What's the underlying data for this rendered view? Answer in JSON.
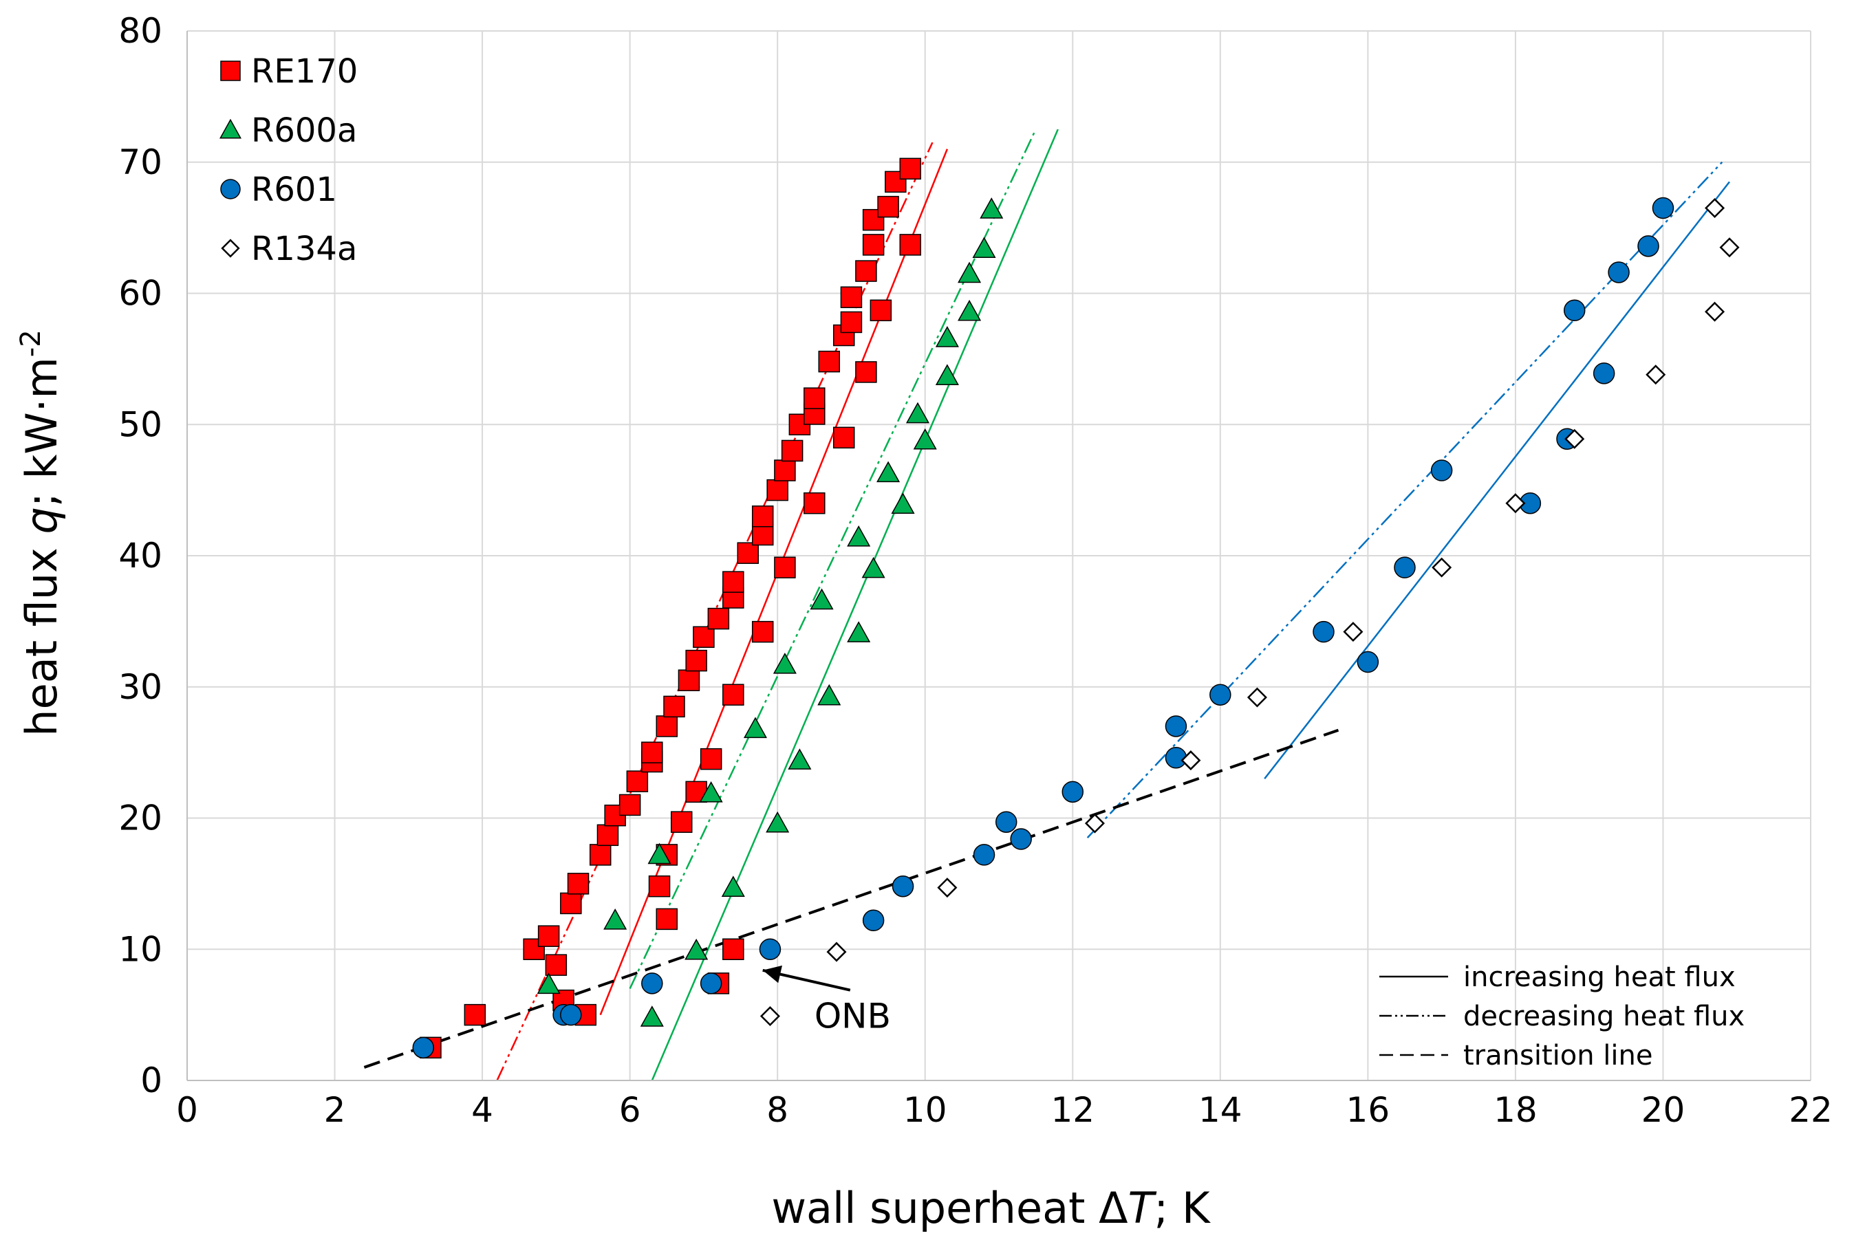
{
  "chart_data": {
    "type": "scatter",
    "title": "",
    "xlabel": "wall superheat ΔT; K",
    "xlabel_parts": [
      "wall superheat Δ",
      "T",
      "; K"
    ],
    "ylabel": "heat flux q; kW·m-2",
    "ylabel_parts": [
      "heat flux ",
      "q",
      "; kW·m",
      "-2"
    ],
    "xlim": [
      0,
      22
    ],
    "ylim": [
      0,
      80
    ],
    "xticks": [
      0,
      2,
      4,
      6,
      8,
      10,
      12,
      14,
      16,
      18,
      20,
      22
    ],
    "yticks": [
      0,
      10,
      20,
      30,
      40,
      50,
      60,
      70,
      80
    ],
    "grid": true,
    "legend_position": "top-left",
    "colors": {
      "RE170": "#ff0000",
      "R600a": "#00b050",
      "R601": "#0070c0",
      "R134a": "#ffffff",
      "transition": "#000000"
    },
    "series": [
      {
        "name": "RE170",
        "marker": "square",
        "color": "#ff0000",
        "points": [
          [
            3.3,
            2.5
          ],
          [
            3.9,
            5
          ],
          [
            4.7,
            10
          ],
          [
            4.9,
            11
          ],
          [
            5.0,
            8.8
          ],
          [
            5.1,
            6.1
          ],
          [
            5.2,
            13.5
          ],
          [
            5.3,
            15
          ],
          [
            5.4,
            5
          ],
          [
            5.6,
            17.2
          ],
          [
            5.7,
            18.7
          ],
          [
            5.8,
            20.2
          ],
          [
            6.0,
            21
          ],
          [
            6.1,
            22.8
          ],
          [
            6.3,
            24.3
          ],
          [
            6.3,
            25
          ],
          [
            6.5,
            27
          ],
          [
            6.6,
            28.5
          ],
          [
            6.8,
            30.5
          ],
          [
            6.9,
            32
          ],
          [
            7.0,
            33.8
          ],
          [
            7.2,
            35.2
          ],
          [
            7.4,
            36.8
          ],
          [
            7.4,
            38
          ],
          [
            7.6,
            40.2
          ],
          [
            7.8,
            41.6
          ],
          [
            7.8,
            43
          ],
          [
            8.0,
            45
          ],
          [
            8.1,
            46.5
          ],
          [
            8.2,
            48
          ],
          [
            8.3,
            50
          ],
          [
            8.5,
            50.8
          ],
          [
            8.5,
            52
          ],
          [
            8.7,
            54.8
          ],
          [
            8.9,
            56.8
          ],
          [
            9.0,
            57.8
          ],
          [
            9.0,
            59.7
          ],
          [
            9.2,
            61.7
          ],
          [
            9.3,
            63.7
          ],
          [
            9.3,
            65.6
          ],
          [
            9.5,
            66.6
          ],
          [
            9.6,
            68.5
          ],
          [
            9.8,
            69.5
          ],
          [
            9.8,
            63.7
          ],
          [
            9.4,
            58.7
          ],
          [
            9.2,
            54
          ],
          [
            8.9,
            49
          ],
          [
            8.5,
            44
          ],
          [
            8.1,
            39.1
          ],
          [
            7.8,
            34.2
          ],
          [
            7.4,
            29.4
          ],
          [
            7.1,
            24.5
          ],
          [
            6.9,
            22
          ],
          [
            6.7,
            19.7
          ],
          [
            6.5,
            17.2
          ],
          [
            6.4,
            14.8
          ],
          [
            6.5,
            12.3
          ],
          [
            7.4,
            10
          ],
          [
            7.2,
            7.4
          ]
        ]
      },
      {
        "name": "R600a",
        "marker": "triangle",
        "color": "#00b050",
        "points": [
          [
            4.9,
            7.3
          ],
          [
            5.8,
            12.2
          ],
          [
            6.3,
            4.8
          ],
          [
            6.4,
            17.2
          ],
          [
            6.9,
            9.9
          ],
          [
            7.1,
            21.9
          ],
          [
            7.4,
            14.7
          ],
          [
            7.7,
            26.8
          ],
          [
            8.0,
            19.6
          ],
          [
            8.1,
            31.7
          ],
          [
            8.3,
            24.4
          ],
          [
            8.6,
            36.6
          ],
          [
            8.7,
            29.3
          ],
          [
            9.1,
            34.1
          ],
          [
            9.1,
            41.4
          ],
          [
            9.3,
            39
          ],
          [
            9.5,
            46.3
          ],
          [
            9.7,
            43.9
          ],
          [
            9.9,
            50.8
          ],
          [
            10.0,
            48.8
          ],
          [
            10.3,
            53.7
          ],
          [
            10.3,
            56.6
          ],
          [
            10.6,
            58.6
          ],
          [
            10.6,
            61.5
          ],
          [
            10.8,
            63.4
          ],
          [
            10.9,
            66.4
          ]
        ]
      },
      {
        "name": "R601",
        "marker": "circle",
        "color": "#0070c0",
        "points": [
          [
            3.2,
            2.5
          ],
          [
            5.1,
            5
          ],
          [
            5.2,
            5
          ],
          [
            6.3,
            7.4
          ],
          [
            7.1,
            7.4
          ],
          [
            7.9,
            10
          ],
          [
            9.3,
            12.2
          ],
          [
            9.7,
            14.8
          ],
          [
            10.8,
            17.2
          ],
          [
            11.1,
            19.7
          ],
          [
            11.3,
            18.4
          ],
          [
            12.0,
            22
          ],
          [
            13.4,
            24.6
          ],
          [
            13.4,
            27
          ],
          [
            14.0,
            29.4
          ],
          [
            15.4,
            34.2
          ],
          [
            16.0,
            31.9
          ],
          [
            16.5,
            39.1
          ],
          [
            17.0,
            46.5
          ],
          [
            18.2,
            44
          ],
          [
            18.7,
            48.9
          ],
          [
            18.8,
            58.7
          ],
          [
            19.2,
            53.9
          ],
          [
            19.4,
            61.6
          ],
          [
            19.8,
            63.6
          ],
          [
            20.0,
            66.5
          ]
        ]
      },
      {
        "name": "R134a",
        "marker": "diamond",
        "color": "#ffffff",
        "points": [
          [
            7.9,
            4.9
          ],
          [
            8.8,
            9.8
          ],
          [
            10.3,
            14.7
          ],
          [
            12.3,
            19.6
          ],
          [
            13.6,
            24.4
          ],
          [
            14.5,
            29.2
          ],
          [
            15.8,
            34.2
          ],
          [
            17.0,
            39.1
          ],
          [
            18.0,
            44
          ],
          [
            18.8,
            48.9
          ],
          [
            19.9,
            53.8
          ],
          [
            20.7,
            58.6
          ],
          [
            20.9,
            63.5
          ],
          [
            20.7,
            66.5
          ]
        ]
      }
    ],
    "trend_lines": [
      {
        "name": "RE170 increasing heat flux",
        "style": "solid",
        "color": "#ff0000",
        "points": [
          [
            5.6,
            5
          ],
          [
            10.3,
            71
          ]
        ]
      },
      {
        "name": "RE170 decreasing heat flux",
        "style": "dashdotdot",
        "color": "#ff0000",
        "points": [
          [
            4.2,
            0
          ],
          [
            10.1,
            71.5
          ]
        ]
      },
      {
        "name": "R600a increasing heat flux",
        "style": "solid",
        "color": "#00b050",
        "points": [
          [
            6.3,
            0
          ],
          [
            11.8,
            72.5
          ]
        ]
      },
      {
        "name": "R600a decreasing heat flux",
        "style": "dashdotdot",
        "color": "#00b050",
        "points": [
          [
            6.0,
            7
          ],
          [
            11.5,
            72.5
          ]
        ]
      },
      {
        "name": "R601 increasing heat flux",
        "style": "solid",
        "color": "#0070c0",
        "points": [
          [
            14.6,
            23
          ],
          [
            20.9,
            68.5
          ]
        ]
      },
      {
        "name": "R601 decreasing heat flux",
        "style": "dashdotdot",
        "color": "#0070c0",
        "points": [
          [
            12.2,
            18.5
          ],
          [
            20.8,
            70
          ]
        ]
      },
      {
        "name": "transition line",
        "style": "dashed",
        "color": "#000000",
        "points": [
          [
            2.4,
            1
          ],
          [
            15.6,
            26.7
          ]
        ]
      }
    ],
    "legend": [
      "RE170",
      "R600a",
      "R601",
      "R134a"
    ],
    "line_legend": [
      {
        "label": "increasing heat flux",
        "style": "solid"
      },
      {
        "label": "decreasing heat flux",
        "style": "dashdotdot"
      },
      {
        "label": "transition line",
        "style": "dashed"
      }
    ],
    "annotations": [
      {
        "text": "ONB",
        "text_at": [
          8.5,
          4
        ],
        "arrow_to": [
          7.8,
          8.4
        ]
      }
    ]
  }
}
